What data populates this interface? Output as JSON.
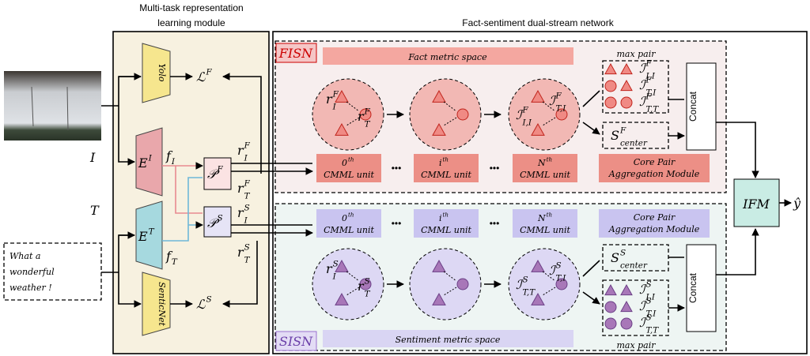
{
  "left": {
    "title": [
      "Multi-task representation",
      "learning module"
    ],
    "yolo": "Yolo",
    "senticnet": "SenticNet",
    "loss_f": {
      "b": "ℒ",
      "sup": "F"
    },
    "loss_s": {
      "b": "ℒ",
      "sup": "S"
    },
    "enc_i": {
      "b": "E",
      "sup": "I"
    },
    "enc_t": {
      "b": "E",
      "sup": "T"
    },
    "f_i": {
      "b": "f",
      "sub": "I"
    },
    "f_t": {
      "b": "f",
      "sub": "T"
    },
    "proj_f": {
      "b": "𝒫",
      "sup": "F"
    },
    "proj_s": {
      "b": "𝒫",
      "sup": "S"
    },
    "r_if": {
      "b": "r",
      "sup": "F",
      "sub": "I"
    },
    "r_tf": {
      "b": "r",
      "sup": "F",
      "sub": "T"
    },
    "r_is": {
      "b": "r",
      "sup": "S",
      "sub": "I"
    },
    "r_ts": {
      "b": "r",
      "sup": "S",
      "sub": "T"
    }
  },
  "inputs": {
    "image_label": "I",
    "text_label": "T",
    "text": [
      "What a",
      "wonderful",
      "weather !"
    ]
  },
  "right": {
    "title": "Fact-sentiment dual-stream network",
    "fisn": {
      "label": "FISN",
      "space": "Fact metric space",
      "max_pair": "max pair",
      "concat": "Concat",
      "center": {
        "b": "S",
        "sup": "F",
        "sub": "center"
      },
      "units": [
        {
          "ord": {
            "b": "0",
            "sup": "th"
          },
          "name": "CMML unit"
        },
        {
          "ord": {
            "b": "i",
            "sup": "th"
          },
          "name": "CMML unit"
        },
        {
          "ord": {
            "b": "N",
            "sup": "th"
          },
          "name": "CMML unit"
        }
      ],
      "core": [
        "Core Pair",
        "Aggregation Module"
      ],
      "dots": [
        "•••",
        "•••"
      ],
      "pairs": [
        {
          "b": "ℐ",
          "sup": "F",
          "sub": "I,I"
        },
        {
          "b": "ℐ",
          "sup": "F",
          "sub": "T,I"
        },
        {
          "b": "ℐ",
          "sup": "F",
          "sub": "T,T"
        }
      ],
      "circle_labels": [
        {
          "b": "r",
          "sup": "F",
          "sub": "I"
        },
        {
          "b": "r",
          "sup": "F",
          "sub": "T"
        },
        {
          "b": "ℐ",
          "sup": "F",
          "sub": "T,I"
        },
        {
          "b": "ℐ",
          "sup": "F",
          "sub": "I,I"
        }
      ]
    },
    "sisn": {
      "label": "SISN",
      "space": "Sentiment  metric space",
      "max_pair": "max pair",
      "concat": "Concat",
      "center": {
        "b": "S",
        "sup": "S",
        "sub": "center"
      },
      "units": [
        {
          "ord": {
            "b": "0",
            "sup": "th"
          },
          "name": "CMML unit"
        },
        {
          "ord": {
            "b": "i",
            "sup": "th"
          },
          "name": "CMML unit"
        },
        {
          "ord": {
            "b": "N",
            "sup": "th"
          },
          "name": "CMML unit"
        }
      ],
      "core": [
        "Core Pair",
        "Aggregation Module"
      ],
      "dots": [
        "•••",
        "•••"
      ],
      "pairs": [
        {
          "b": "ℐ",
          "sup": "S",
          "sub": "I,I"
        },
        {
          "b": "ℐ",
          "sup": "S",
          "sub": "T,I"
        },
        {
          "b": "ℐ",
          "sup": "S",
          "sub": "T,T"
        }
      ],
      "circle_labels": [
        {
          "b": "r",
          "sup": "S",
          "sub": "I"
        },
        {
          "b": "r",
          "sup": "S",
          "sub": "T"
        },
        {
          "b": "ℐ",
          "sup": "S",
          "sub": "T,I"
        },
        {
          "b": "ℐ",
          "sup": "S",
          "sub": "T,T"
        }
      ]
    },
    "ifm": "IFM",
    "output": "ŷ"
  }
}
